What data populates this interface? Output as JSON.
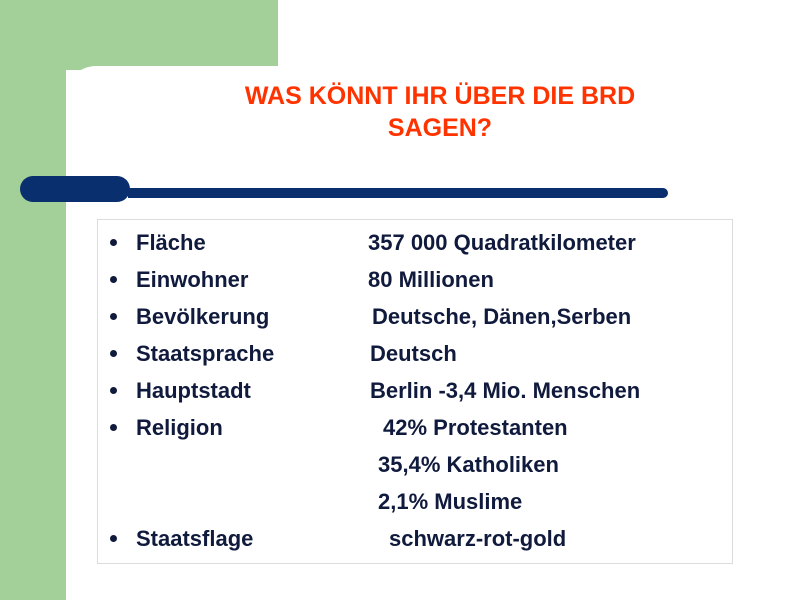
{
  "slide": {
    "title_line1": "WAS KÖNNT IHR ÜBER DIE BRD",
    "title_line2": "SAGEN?",
    "colors": {
      "title": "#ff3300",
      "bar": "#0a2f6e",
      "green": "#a3cf98",
      "text": "#101a3c"
    },
    "rows": [
      {
        "label": "Fläche",
        "value": "357 000 Quadratkilometer",
        "bullet": true
      },
      {
        "label": "Einwohner",
        "value": "80  Millionen",
        "bullet": true
      },
      {
        "label": "Bevölkerung",
        "value": "Deutsche, Dänen,Serben",
        "bullet": true
      },
      {
        "label": "Staatsprache",
        "value": "Deutsch",
        "bullet": true
      },
      {
        "label": "Hauptstadt",
        "value": "Berlin -3,4 Mio. Menschen",
        "bullet": true
      },
      {
        "label": "Religion",
        "value": "42% Protestanten",
        "bullet": true
      },
      {
        "label": "",
        "value": "35,4% Katholiken",
        "bullet": false
      },
      {
        "label": "",
        "value": "2,1% Muslime",
        "bullet": false
      },
      {
        "label": "Staatsflage",
        "value": "schwarz-rot-gold",
        "bullet": true
      }
    ]
  }
}
